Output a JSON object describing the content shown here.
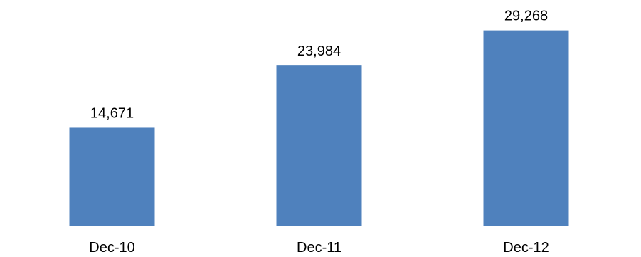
{
  "chart_data": {
    "type": "bar",
    "categories": [
      "Dec-10",
      "Dec-11",
      "Dec-12"
    ],
    "values": [
      14671,
      23984,
      29268
    ],
    "value_labels": [
      "14,671",
      "23,984",
      "29,268"
    ],
    "title": "",
    "xlabel": "",
    "ylabel": "",
    "ylim": [
      0,
      32000
    ],
    "grid": false,
    "legend": "none",
    "bar_color": "#4F81BD",
    "axis_color": "#868686"
  }
}
